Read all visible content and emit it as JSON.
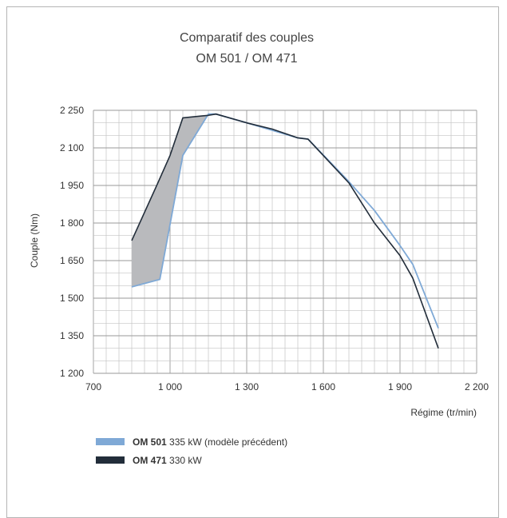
{
  "chart_data": {
    "type": "line",
    "title": "Comparatif des couples",
    "subtitle": "OM 501 / OM 471",
    "xlabel": "Régime (tr/min)",
    "ylabel": "Couple (Nm)",
    "xlim": [
      700,
      2200
    ],
    "ylim": [
      1200,
      2250
    ],
    "x_ticks": [
      700,
      1000,
      1300,
      1600,
      1900,
      2200
    ],
    "x_tick_labels": [
      "700",
      "1 000",
      "1 300",
      "1 600",
      "1 900",
      "2 200"
    ],
    "y_ticks": [
      1200,
      1350,
      1500,
      1650,
      1800,
      1950,
      2100,
      2250
    ],
    "y_tick_labels": [
      "1 200",
      "1 350",
      "1 500",
      "1 650",
      "1 800",
      "1 950",
      "2 100",
      "2 250"
    ],
    "grid": true,
    "legend_position": "bottom-left",
    "shaded_region": {
      "between": [
        "OM 471",
        "OM 501"
      ],
      "x_range": [
        850,
        1150
      ],
      "color": "#b9babd"
    },
    "series": [
      {
        "name": "OM 501",
        "legend_bold": "OM 501",
        "legend_rest": "335 kW (modèle précédent)",
        "color": "#7fa9d6",
        "x": [
          850,
          960,
          1050,
          1150,
          1180,
          1300,
          1400,
          1500,
          1540,
          1700,
          1800,
          1900,
          1950,
          2050
        ],
        "y": [
          1545,
          1575,
          2070,
          2235,
          2235,
          2200,
          2170,
          2140,
          2135,
          1965,
          1850,
          1710,
          1635,
          1380
        ]
      },
      {
        "name": "OM 471",
        "legend_bold": "OM 471",
        "legend_rest": "330 kW",
        "color": "#222d3a",
        "x": [
          850,
          950,
          1000,
          1050,
          1150,
          1180,
          1300,
          1400,
          1500,
          1540,
          1700,
          1800,
          1900,
          1950,
          2050
        ],
        "y": [
          1730,
          1955,
          2070,
          2220,
          2230,
          2235,
          2200,
          2175,
          2140,
          2135,
          1960,
          1800,
          1670,
          1580,
          1300
        ]
      }
    ]
  }
}
